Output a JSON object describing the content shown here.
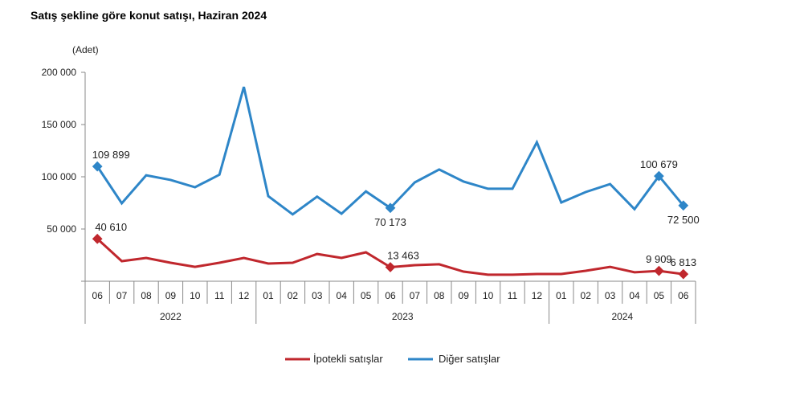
{
  "chart_data": {
    "type": "line",
    "title": "Satış şekline göre konut satışı, Haziran 2024",
    "ylabel": "(Adet)",
    "xlabel": "",
    "ylim": [
      0,
      200000
    ],
    "yticks": [
      0,
      50000,
      100000,
      150000,
      200000
    ],
    "ytick_labels": [
      "",
      "50 000",
      "100 000",
      "150 000",
      "200 000"
    ],
    "categories": [
      "06",
      "07",
      "08",
      "09",
      "10",
      "11",
      "12",
      "01",
      "02",
      "03",
      "04",
      "05",
      "06",
      "07",
      "08",
      "09",
      "10",
      "11",
      "12",
      "01",
      "02",
      "03",
      "04",
      "05",
      "06"
    ],
    "years": [
      {
        "label": "2022",
        "start": 0,
        "end": 6
      },
      {
        "label": "2023",
        "start": 7,
        "end": 18
      },
      {
        "label": "2024",
        "start": 19,
        "end": 24
      }
    ],
    "legend_position": "bottom",
    "grid": false,
    "series": [
      {
        "name": "İpotekli satışlar",
        "color": "#C0272D",
        "values": [
          40610,
          19200,
          22300,
          17700,
          13800,
          17700,
          22300,
          16900,
          17700,
          26100,
          22300,
          27700,
          13463,
          15400,
          16200,
          9200,
          6200,
          6200,
          6900,
          6900,
          10000,
          13800,
          8500,
          9909,
          6813
        ],
        "labels": [
          {
            "index": 0,
            "text": "40 610"
          },
          {
            "index": 12,
            "text": "13 463"
          },
          {
            "index": 23,
            "text": "9 909"
          },
          {
            "index": 24,
            "text": "6 813"
          }
        ]
      },
      {
        "name": "Diğer satışlar",
        "color": "#2E86C8",
        "values": [
          109899,
          74600,
          101500,
          97000,
          90000,
          102000,
          186000,
          81500,
          64000,
          81000,
          64600,
          86000,
          70173,
          94600,
          107000,
          95400,
          88500,
          88500,
          133000,
          75400,
          85400,
          93000,
          69000,
          100679,
          72500
        ],
        "labels": [
          {
            "index": 0,
            "text": "109 899"
          },
          {
            "index": 12,
            "text": "70 173"
          },
          {
            "index": 23,
            "text": "100 679"
          },
          {
            "index": 24,
            "text": "72 500"
          }
        ]
      }
    ]
  }
}
